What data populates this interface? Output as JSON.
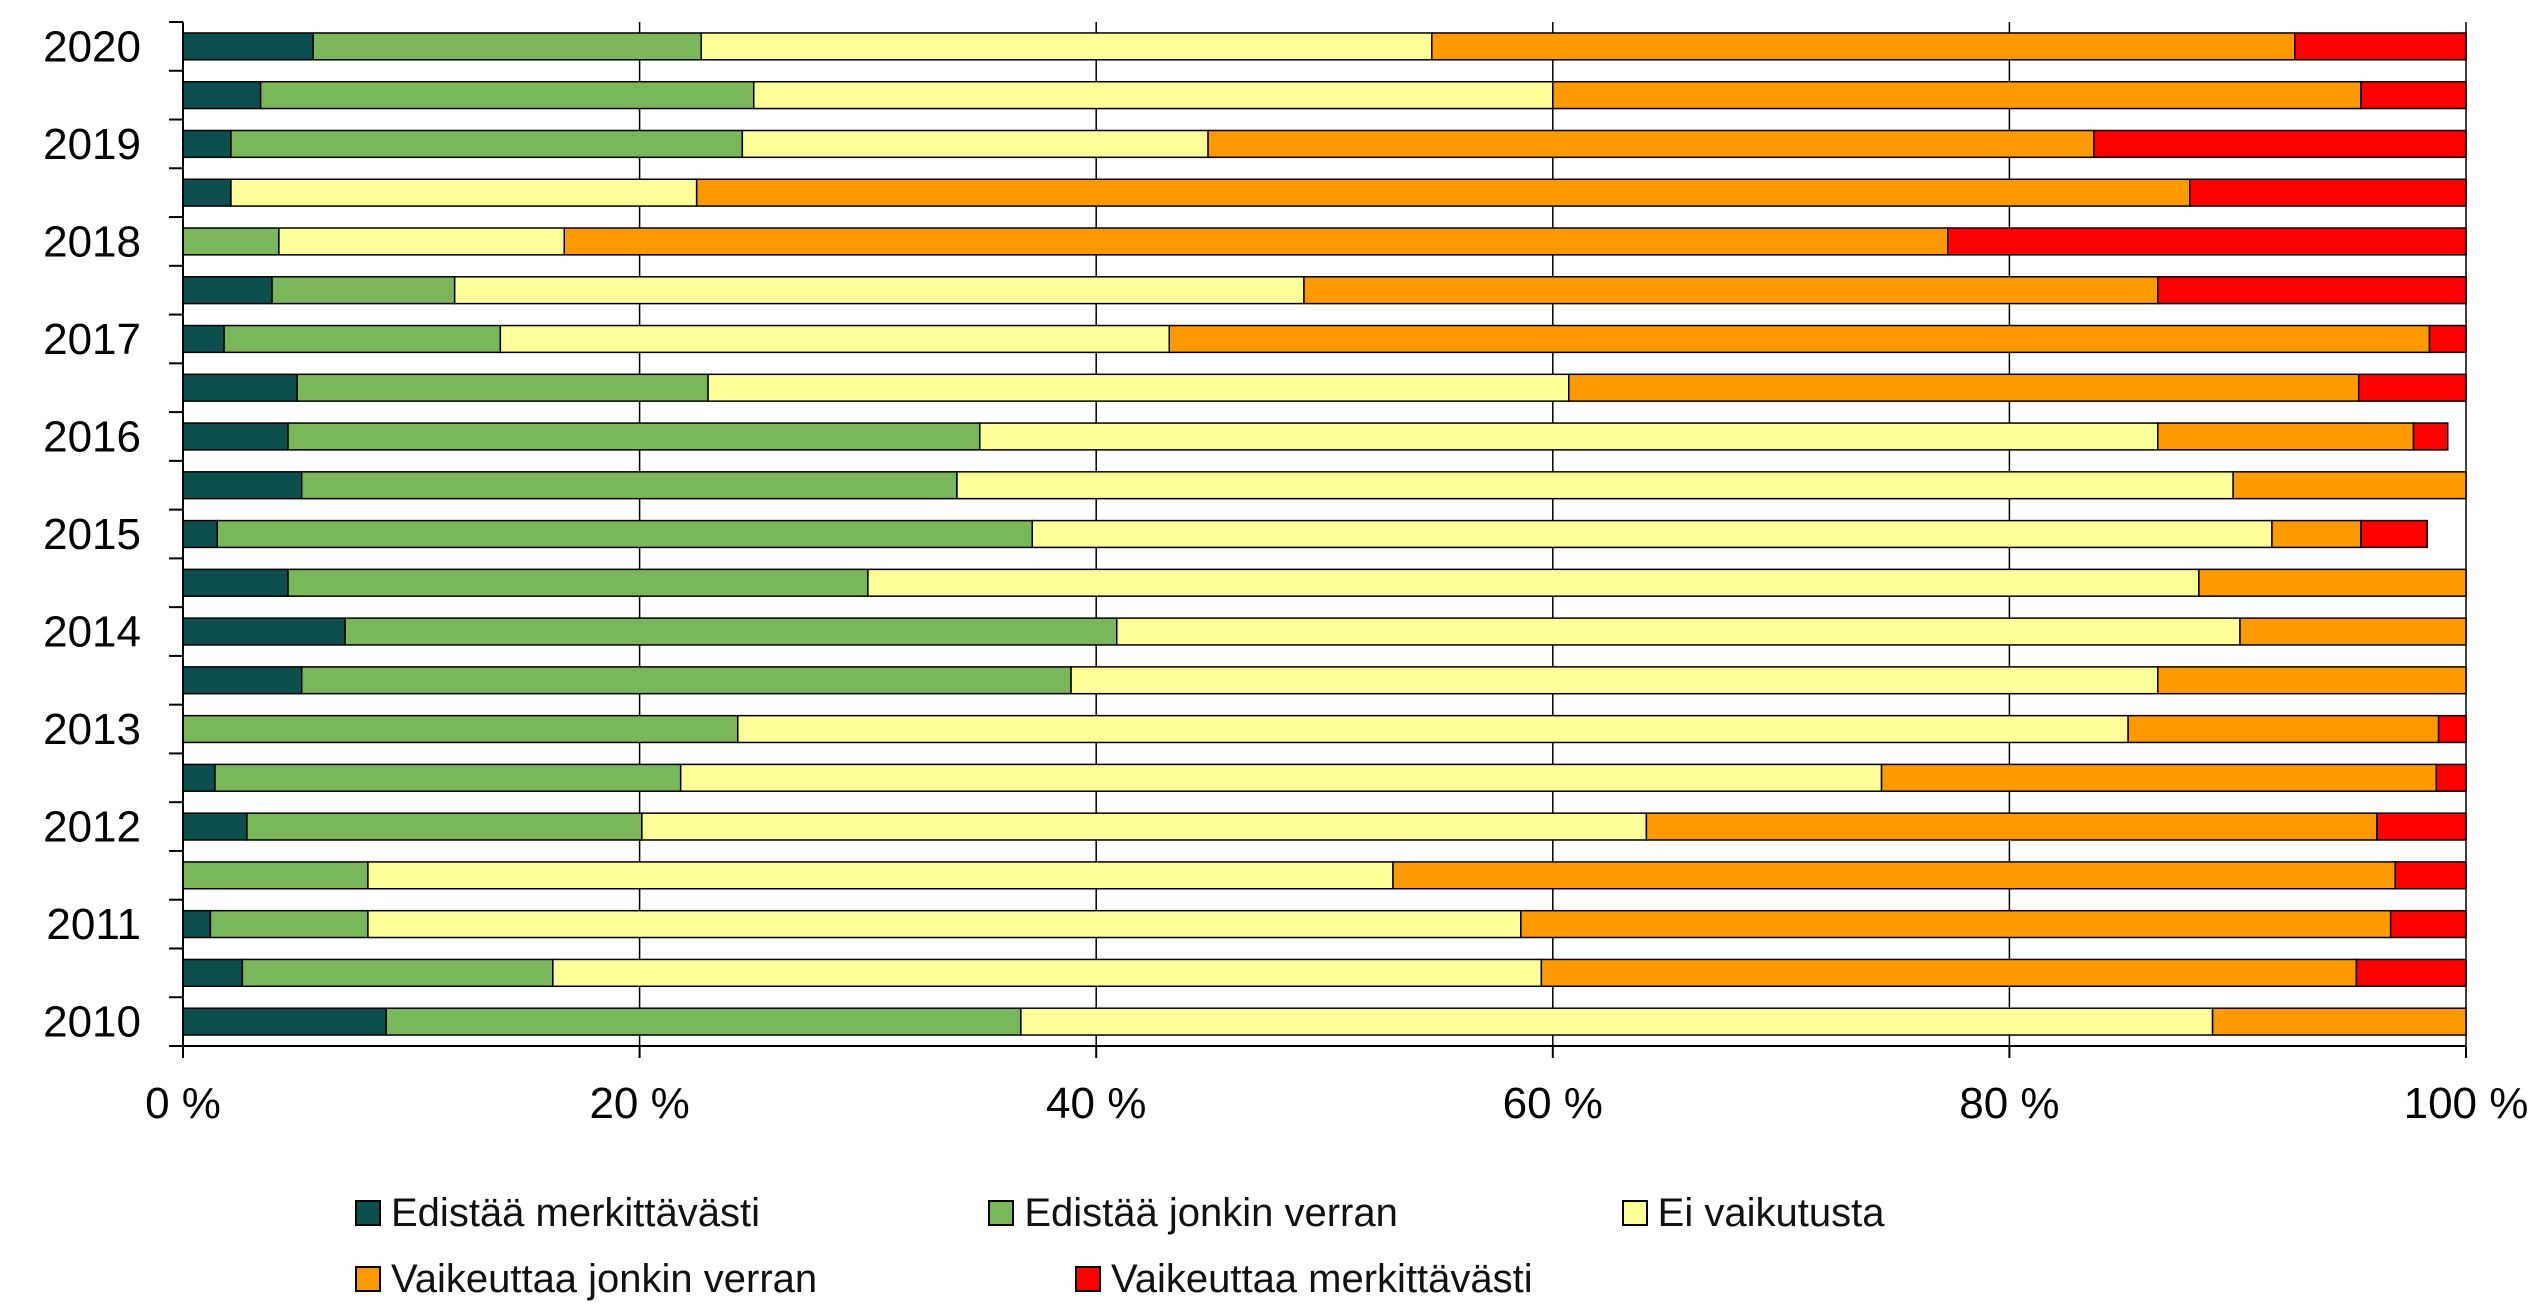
{
  "chart_data": {
    "type": "bar",
    "orientation": "horizontal",
    "stacked": "percent",
    "categories": [
      "2010",
      "",
      "2011",
      "",
      "2012",
      "",
      "2013",
      "",
      "2014",
      "",
      "2015",
      "",
      "2016",
      "",
      "2017",
      "",
      "2018",
      "",
      "2019",
      "",
      "2020"
    ],
    "xlim": [
      0,
      100
    ],
    "xticks": [
      "0 %",
      "20 %",
      "40 %",
      "60 %",
      "80 %",
      "100 %"
    ],
    "grid": true,
    "legend_position": "bottom",
    "series": [
      {
        "name": "Edistää merkittävästi",
        "color": "#0d4f4f",
        "values": [
          8.9,
          2.6,
          1.2,
          0,
          2.8,
          1.4,
          0,
          5.2,
          7.1,
          4.6,
          1.5,
          5.2,
          4.6,
          5,
          1.8,
          3.9,
          0,
          2.1,
          2.1,
          3.4,
          5.7
        ]
      },
      {
        "name": "Edistää jonkin verran",
        "color": "#7ab65a",
        "values": [
          27.8,
          13.6,
          6.9,
          8.1,
          17.3,
          20.4,
          24.3,
          33.7,
          33.8,
          25.4,
          35.7,
          28.7,
          30.3,
          18,
          12.1,
          8,
          4.2,
          0,
          22.4,
          21.6,
          17.0
        ]
      },
      {
        "name": "Ei vaikutusta",
        "color": "#ffff99",
        "values": [
          52.2,
          43.3,
          50.5,
          44.9,
          44.0,
          52.6,
          60.9,
          47.6,
          49.2,
          58.3,
          54.3,
          55.9,
          51.6,
          37.7,
          29.3,
          37.2,
          12.5,
          20.4,
          20.4,
          35.0,
          32.0
        ]
      },
      {
        "name": "Vaikeuttaa jonkin verran",
        "color": "#ff9900",
        "values": [
          11.1,
          35.7,
          38.1,
          43.9,
          32.0,
          24.3,
          13.6,
          13.5,
          9.9,
          11.7,
          3.9,
          10.2,
          11.2,
          34.6,
          55.2,
          37.4,
          60.6,
          65.4,
          38.8,
          35.4,
          37.8
        ]
      },
      {
        "name": "Vaikeuttaa merkittävästi",
        "color": "#ff0000",
        "values": [
          0,
          4.8,
          3.3,
          3.1,
          3.9,
          1.3,
          1.2,
          0,
          0,
          0,
          2.9,
          0,
          1.5,
          4.7,
          1.6,
          13.5,
          22.7,
          12.1,
          16.3,
          4.6,
          7.5
        ]
      }
    ]
  }
}
